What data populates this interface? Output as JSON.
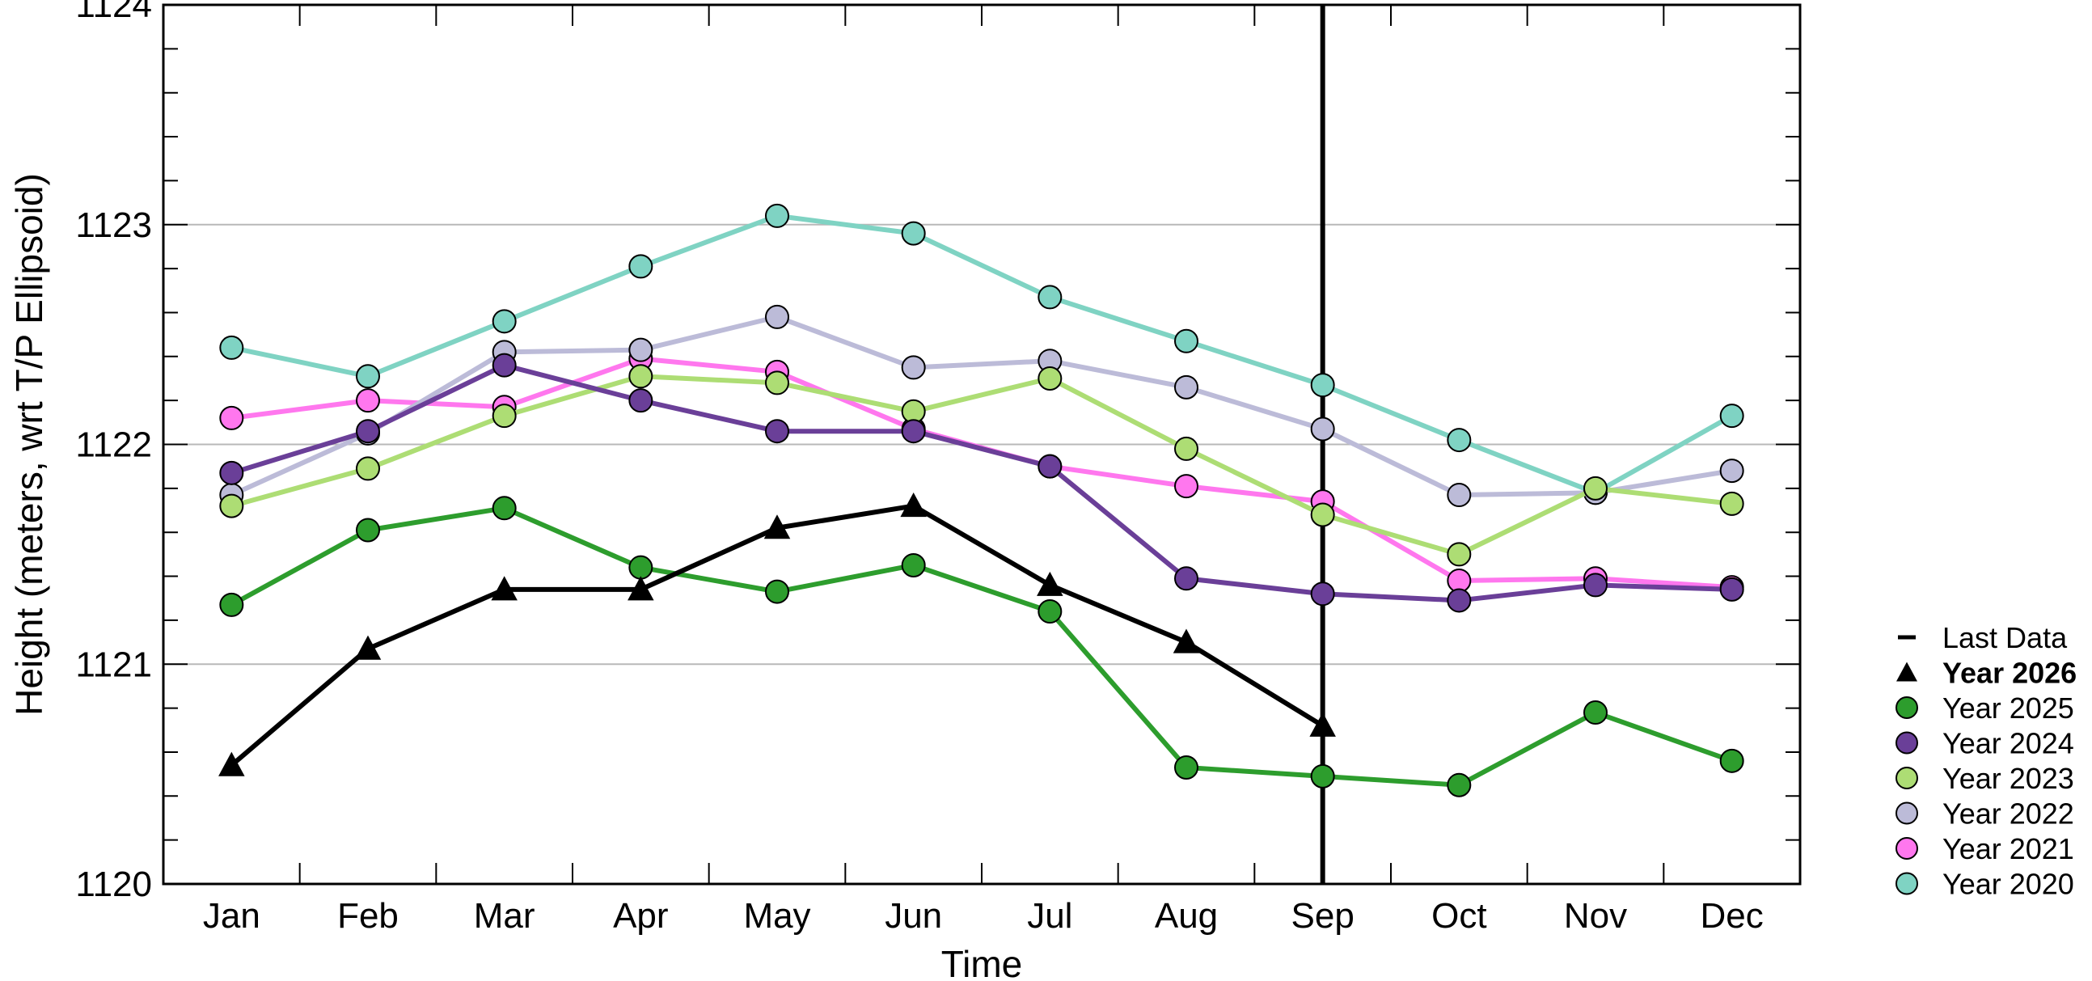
{
  "chart_data": {
    "type": "line",
    "xlabel": "Time",
    "ylabel": "Height (meters, wrt T/P Ellipsoid)",
    "categories": [
      "Jan",
      "Feb",
      "Mar",
      "Apr",
      "May",
      "Jun",
      "Jul",
      "Aug",
      "Sep",
      "Oct",
      "Nov",
      "Dec"
    ],
    "ylim": [
      1120,
      1124
    ],
    "yticks": [
      "1120",
      "1121",
      "1122",
      "1123",
      "1124"
    ],
    "grid": "horizontal",
    "legend_position": "right",
    "last_data_month": "Sep",
    "series": [
      {
        "name": "Year 2020",
        "color": "#7fd3c3",
        "marker": "circle",
        "values": [
          1122.44,
          1122.31,
          1122.56,
          1122.81,
          1123.04,
          1122.96,
          1122.67,
          1122.47,
          1122.27,
          1122.02,
          1121.78,
          1122.13
        ]
      },
      {
        "name": "Year 2021",
        "color": "#ff77ee",
        "marker": "circle",
        "values": [
          1122.12,
          1122.2,
          1122.17,
          1122.39,
          1122.33,
          1122.07,
          1121.9,
          1121.81,
          1121.74,
          1121.38,
          1121.39,
          1121.35
        ]
      },
      {
        "name": "Year 2022",
        "color": "#bcbbd8",
        "marker": "circle",
        "values": [
          1121.77,
          1122.05,
          1122.42,
          1122.43,
          1122.58,
          1122.35,
          1122.38,
          1122.26,
          1122.07,
          1121.77,
          1121.78,
          1121.88
        ]
      },
      {
        "name": "Year 2023",
        "color": "#addd74",
        "marker": "circle",
        "values": [
          1121.72,
          1121.89,
          1122.13,
          1122.31,
          1122.28,
          1122.15,
          1122.3,
          1121.98,
          1121.68,
          1121.5,
          1121.8,
          1121.73
        ]
      },
      {
        "name": "Year 2024",
        "color": "#6a3f98",
        "marker": "circle",
        "values": [
          1121.87,
          1122.06,
          1122.36,
          1122.2,
          1122.06,
          1122.06,
          1121.9,
          1121.39,
          1121.32,
          1121.29,
          1121.36,
          1121.34
        ]
      },
      {
        "name": "Year 2025",
        "color": "#2d9d2d",
        "marker": "circle",
        "values": [
          1121.27,
          1121.61,
          1121.71,
          1121.44,
          1121.33,
          1121.45,
          1121.24,
          1120.53,
          1120.49,
          1120.45,
          1120.78,
          1120.56
        ]
      },
      {
        "name": "Year 2026",
        "color": "#000000",
        "marker": "triangle",
        "values": [
          1120.54,
          1121.07,
          1121.34,
          1121.34,
          1121.62,
          1121.72,
          1121.36,
          1121.1,
          1120.72,
          null,
          null,
          null
        ]
      }
    ],
    "legend": [
      {
        "label": "Last Data",
        "symbol": "line",
        "color": "#000000",
        "bold": false
      },
      {
        "label": "Year 2026",
        "symbol": "triangle",
        "color": "#000000",
        "bold": true
      },
      {
        "label": "Year 2025",
        "symbol": "circle",
        "color": "#2d9d2d",
        "bold": false
      },
      {
        "label": "Year 2024",
        "symbol": "circle",
        "color": "#6a3f98",
        "bold": false
      },
      {
        "label": "Year 2023",
        "symbol": "circle",
        "color": "#addd74",
        "bold": false
      },
      {
        "label": "Year 2022",
        "symbol": "circle",
        "color": "#bcbbd8",
        "bold": false
      },
      {
        "label": "Year 2021",
        "symbol": "circle",
        "color": "#ff77ee",
        "bold": false
      },
      {
        "label": "Year 2020",
        "symbol": "circle",
        "color": "#7fd3c3",
        "bold": false
      }
    ]
  }
}
